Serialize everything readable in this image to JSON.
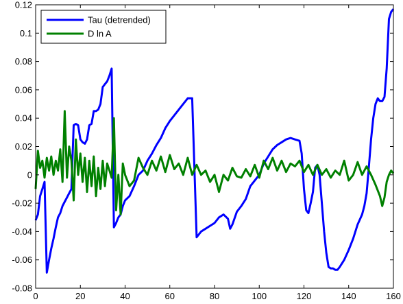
{
  "chart_data": {
    "type": "line",
    "title": "",
    "xlabel": "",
    "ylabel": "",
    "xlim": [
      0,
      160
    ],
    "ylim": [
      -0.08,
      0.12
    ],
    "xticks": [
      0,
      20,
      40,
      60,
      80,
      100,
      120,
      140,
      160
    ],
    "yticks": [
      -0.08,
      -0.06,
      -0.04,
      -0.02,
      0,
      0.02,
      0.04,
      0.06,
      0.08,
      0.1,
      0.12
    ],
    "xtick_labels": [
      "0",
      "20",
      "40",
      "60",
      "80",
      "100",
      "120",
      "140",
      "160"
    ],
    "ytick_labels": [
      "-0.08",
      "-0.06",
      "-0.04",
      "-0.02",
      "0",
      "0.02",
      "0.04",
      "0.06",
      "0.08",
      "0.1",
      "0.12"
    ],
    "grid": false,
    "legend_position": "top-left",
    "series": [
      {
        "name": "Tau (detrended)",
        "color": "#0000ff",
        "x": [
          0,
          1,
          2,
          3,
          4,
          5,
          6,
          7,
          8,
          9,
          10,
          11,
          12,
          13,
          14,
          15,
          16,
          17,
          18,
          19,
          20,
          21,
          22,
          23,
          24,
          25,
          26,
          27,
          28,
          29,
          30,
          31,
          32,
          33,
          34,
          35,
          36,
          37,
          38,
          39,
          40,
          42,
          44,
          46,
          48,
          50,
          52,
          54,
          56,
          58,
          60,
          62,
          64,
          66,
          68,
          70,
          72,
          73,
          74,
          76,
          78,
          80,
          82,
          84,
          86,
          87,
          88,
          90,
          92,
          94,
          96,
          98,
          100,
          102,
          104,
          106,
          108,
          110,
          112,
          114,
          116,
          118,
          119,
          120,
          121,
          122,
          123,
          124,
          125,
          126,
          127,
          128,
          129,
          130,
          131,
          132,
          133,
          134,
          135,
          136,
          138,
          140,
          142,
          144,
          146,
          147,
          148,
          149,
          150,
          151,
          152,
          153,
          154,
          155,
          156,
          157,
          158,
          159,
          160
        ],
        "values": [
          -0.032,
          -0.028,
          -0.015,
          -0.01,
          -0.005,
          -0.069,
          -0.06,
          -0.052,
          -0.045,
          -0.037,
          -0.03,
          -0.027,
          -0.022,
          -0.019,
          -0.016,
          -0.013,
          -0.01,
          0.035,
          0.036,
          0.035,
          0.025,
          0.023,
          0.022,
          0.025,
          0.035,
          0.036,
          0.045,
          0.045,
          0.046,
          0.05,
          0.062,
          0.064,
          0.066,
          0.07,
          0.075,
          -0.037,
          -0.034,
          -0.03,
          -0.028,
          -0.022,
          -0.018,
          -0.015,
          -0.008,
          0.0,
          0.003,
          0.01,
          0.015,
          0.021,
          0.026,
          0.033,
          0.038,
          0.042,
          0.046,
          0.05,
          0.054,
          0.054,
          -0.044,
          -0.042,
          -0.04,
          -0.038,
          -0.036,
          -0.034,
          -0.03,
          -0.028,
          -0.031,
          -0.038,
          -0.035,
          -0.026,
          -0.022,
          -0.017,
          -0.008,
          -0.004,
          0.0,
          0.008,
          0.013,
          0.018,
          0.021,
          0.023,
          0.025,
          0.026,
          0.025,
          0.024,
          0.015,
          -0.01,
          -0.025,
          -0.027,
          -0.02,
          -0.012,
          0.005,
          0.007,
          0.0,
          -0.02,
          -0.04,
          -0.055,
          -0.065,
          -0.066,
          -0.066,
          -0.067,
          -0.067,
          -0.065,
          -0.06,
          -0.053,
          -0.045,
          -0.035,
          -0.028,
          -0.022,
          -0.013,
          0.005,
          0.025,
          0.04,
          0.05,
          0.054,
          0.052,
          0.052,
          0.055,
          0.075,
          0.11,
          0.115,
          0.117
        ]
      },
      {
        "name": "D ln A",
        "color": "#008000",
        "x": [
          0,
          1,
          2,
          3,
          4,
          5,
          6,
          7,
          8,
          9,
          10,
          11,
          12,
          13,
          14,
          15,
          16,
          17,
          18,
          19,
          20,
          21,
          22,
          23,
          24,
          25,
          26,
          27,
          28,
          29,
          30,
          31,
          32,
          33,
          34,
          35,
          36,
          37,
          38,
          39,
          40,
          42,
          44,
          46,
          48,
          50,
          52,
          54,
          56,
          58,
          60,
          62,
          64,
          66,
          68,
          70,
          72,
          74,
          76,
          78,
          80,
          82,
          84,
          86,
          88,
          90,
          92,
          94,
          96,
          98,
          100,
          102,
          104,
          106,
          108,
          110,
          112,
          114,
          116,
          118,
          120,
          122,
          124,
          126,
          128,
          130,
          132,
          134,
          136,
          138,
          140,
          142,
          144,
          146,
          148,
          150,
          152,
          154,
          155,
          156,
          157,
          158,
          159,
          160
        ],
        "values": [
          -0.01,
          0.017,
          0.005,
          0.01,
          -0.002,
          0.012,
          0.003,
          0.013,
          0.0,
          0.01,
          0.003,
          0.018,
          -0.005,
          0.045,
          -0.002,
          0.02,
          0.01,
          -0.018,
          0.025,
          0.0,
          0.015,
          -0.005,
          0.012,
          -0.012,
          0.01,
          -0.008,
          0.013,
          -0.015,
          0.005,
          -0.01,
          0.01,
          -0.008,
          0.008,
          0.003,
          -0.002,
          0.04,
          -0.025,
          0.0,
          -0.028,
          0.008,
          0.0,
          -0.008,
          -0.004,
          0.012,
          0.005,
          0.0,
          0.01,
          0.003,
          0.013,
          0.002,
          0.014,
          0.004,
          0.008,
          0.0,
          0.012,
          0.0,
          0.007,
          0.0,
          0.003,
          -0.005,
          0.0,
          -0.012,
          0.0,
          -0.004,
          0.005,
          -0.001,
          -0.002,
          0.004,
          -0.001,
          0.007,
          -0.002,
          0.01,
          0.004,
          0.012,
          0.003,
          0.01,
          0.002,
          0.008,
          0.006,
          0.01,
          0.002,
          0.007,
          0.0,
          0.007,
          0.0,
          0.004,
          -0.002,
          0.003,
          0.0,
          0.01,
          -0.004,
          0.0,
          0.009,
          0.0,
          0.006,
          0.0,
          -0.007,
          -0.015,
          -0.022,
          -0.016,
          -0.005,
          0.0,
          0.003,
          0.001
        ]
      }
    ]
  }
}
